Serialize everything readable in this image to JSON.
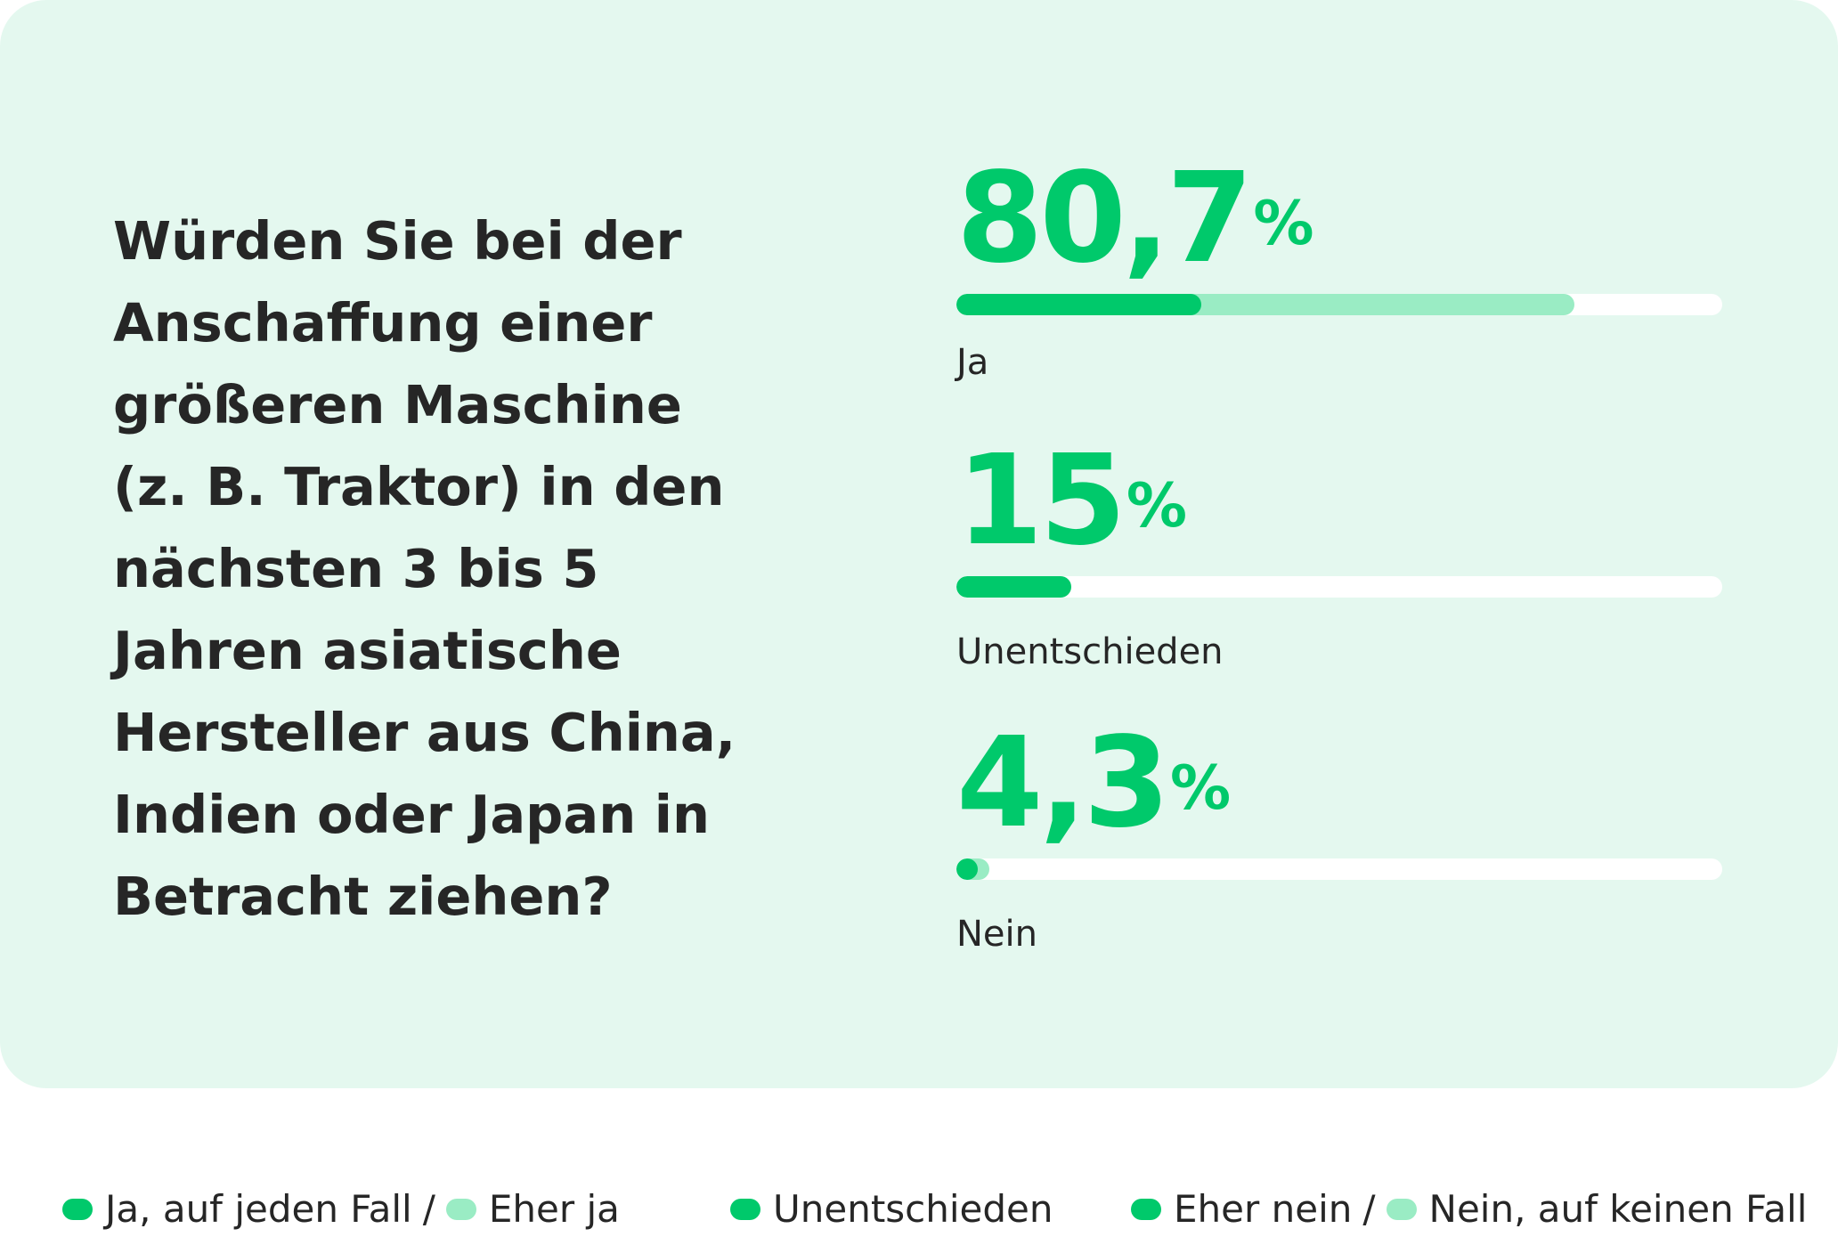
{
  "question": "Würden Sie bei der Anschaffung einer größeren Maschine (z. B. Traktor) in den nächsten 3 bis 5 Jahren asiatische Hersteller aus China, Indien oder Japan in Betracht ziehen?",
  "colors": {
    "strong": "#00c96b",
    "light": "#9aecc4",
    "card_background": "#e4f8ef",
    "track": "#ffffff"
  },
  "chart_data": {
    "type": "bar",
    "orientation": "horizontal",
    "categories": [
      "Ja",
      "Unentschieden",
      "Nein"
    ],
    "totals": [
      {
        "value": "80,7",
        "unit": "%"
      },
      {
        "value": "15",
        "unit": "%"
      },
      {
        "value": "4,3",
        "unit": "%"
      }
    ],
    "segments": [
      [
        {
          "share": 32.0,
          "color": "#00c96b"
        },
        {
          "share": 48.7,
          "color": "#9aecc4"
        }
      ],
      [
        {
          "share": 15.0,
          "color": "#00c96b"
        }
      ],
      [
        {
          "share": 2.3,
          "color": "#00c96b"
        },
        {
          "share": 2.0,
          "color": "#9aecc4"
        }
      ]
    ],
    "max": 100,
    "legend": {
      "groups": [
        {
          "items": [
            {
              "label": "Ja, auf jeden Fall",
              "color": "#00c96b"
            },
            {
              "label": "Eher ja",
              "color": "#9aecc4"
            }
          ],
          "separator": "/"
        },
        {
          "items": [
            {
              "label": "Unentschieden",
              "color": "#00c96b"
            }
          ],
          "separator": ""
        },
        {
          "items": [
            {
              "label": "Eher nein",
              "color": "#00c96b"
            },
            {
              "label": "Nein, auf keinen Fall",
              "color": "#9aecc4"
            }
          ],
          "separator": "/"
        }
      ]
    }
  }
}
